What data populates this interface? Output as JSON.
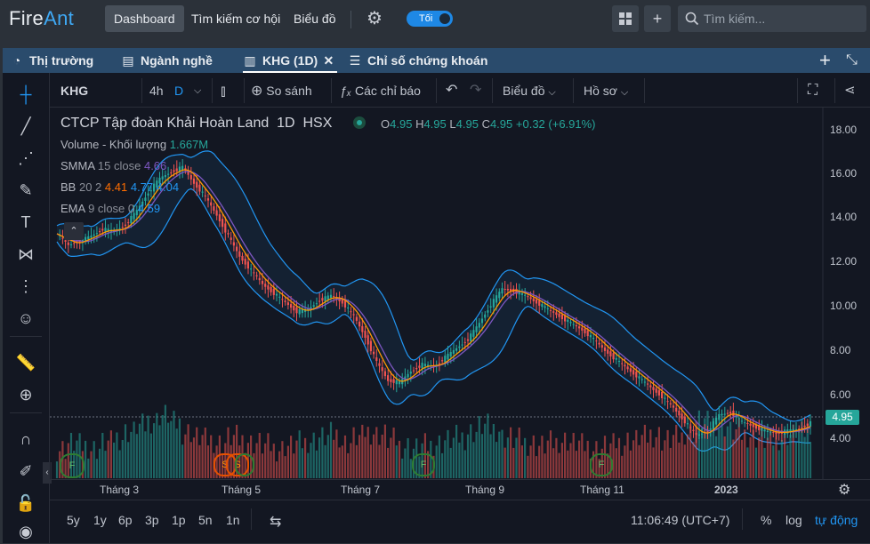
{
  "nav": {
    "logo_a": "Fire",
    "logo_b": "Ant",
    "dashboard": "Dashboard",
    "search_opportunity": "Tìm kiếm cơ hội",
    "chart": "Biểu đồ",
    "theme_toggle": "Tối",
    "search_placeholder": "Tìm kiếm..."
  },
  "tabs": [
    {
      "label": "Thị trường",
      "icon": "pie-icon"
    },
    {
      "label": "Ngành nghề",
      "icon": "table-icon"
    },
    {
      "label": "KHG (1D)",
      "icon": "chart-icon"
    },
    {
      "label": "Chỉ số chứng khoán",
      "icon": "list-icon"
    }
  ],
  "toolbar": {
    "symbol": "KHG",
    "interval": "4h",
    "interval_d": "D",
    "compare": "So sánh",
    "indicators": "Các chỉ báo",
    "chart_type": "Biểu đồ",
    "profile": "Hồ sơ"
  },
  "legend": {
    "title": "CTCP Tập đoàn Khải Hoàn Land",
    "resolution": "1D",
    "exchange": "HSX",
    "o_label": "O",
    "o": "4.95",
    "h_label": "H",
    "h": "4.95",
    "l_label": "L",
    "l": "4.95",
    "c_label": "C",
    "c": "4.95",
    "change": "+0.32 (+6.91%)",
    "volume_label": "Volume - Khối lượng",
    "volume": "1.667M",
    "smma_label": "SMMA",
    "smma_params": "15 close",
    "smma": "4.66",
    "bb_label": "BB",
    "bb_params": "20 2",
    "bb_mid": "4.41",
    "bb_up": "4.77",
    "bb_low": "4.04",
    "ema_label": "EMA",
    "ema_params": "9 close 0",
    "ema": "4.59"
  },
  "price_axis": [
    "18.00",
    "16.00",
    "14.00",
    "12.00",
    "10.00",
    "8.00",
    "6.00",
    "4.00"
  ],
  "last_price_tag": "4.95",
  "time_axis": [
    "Tháng 3",
    "Tháng 5",
    "Tháng 7",
    "Tháng 9",
    "Tháng 11",
    "2023"
  ],
  "ranges": [
    "5y",
    "1y",
    "6p",
    "3p",
    "1p",
    "5n",
    "1n"
  ],
  "footer": {
    "clock": "11:06:49 (UTC+7)",
    "percent": "%",
    "log": "log",
    "auto": "tự động"
  },
  "colors": {
    "up": "#26a69a",
    "down": "#ef5350",
    "bb": "#2196f3",
    "smma": "#7e57c2",
    "ema": "#ff9800",
    "accent": "#1e88e5"
  },
  "chart_data": {
    "type": "candlestick",
    "symbol": "KHG",
    "ylim": [
      2.5,
      18.7
    ],
    "approx_close": [
      13.2,
      12.7,
      12.9,
      13.1,
      13.4,
      13.3,
      13.6,
      14.2,
      15.0,
      15.6,
      15.9,
      16.1,
      15.4,
      14.8,
      14.0,
      13.1,
      12.2,
      11.6,
      11.0,
      10.6,
      10.2,
      9.8,
      9.9,
      10.3,
      10.5,
      10.2,
      9.6,
      8.7,
      7.6,
      6.8,
      6.7,
      7.2,
      7.5,
      7.4,
      7.8,
      8.2,
      8.6,
      9.3,
      10.1,
      10.8,
      10.7,
      10.5,
      10.2,
      9.9,
      9.6,
      9.3,
      9.0,
      8.6,
      8.1,
      7.7,
      7.3,
      6.9,
      6.5,
      6.1,
      5.6,
      5.0,
      4.4,
      4.6,
      5.3,
      5.4,
      5.0,
      4.8,
      4.6,
      4.5,
      4.6,
      4.7,
      4.95
    ],
    "volume_relative": [
      0.3,
      0.4,
      0.35,
      0.3,
      0.4,
      0.5,
      0.6,
      0.7,
      0.8,
      0.9,
      0.75,
      0.6,
      0.5,
      0.45,
      0.4,
      0.5,
      0.45,
      0.4,
      0.35,
      0.3,
      0.35,
      0.4,
      0.45,
      0.5,
      0.55,
      0.4,
      0.5,
      0.6,
      0.55,
      0.45,
      0.35,
      0.3,
      0.35,
      0.4,
      0.45,
      0.5,
      0.6,
      0.7,
      0.65,
      0.5,
      0.45,
      0.4,
      0.35,
      0.4,
      0.45,
      0.4,
      0.35,
      0.3,
      0.35,
      0.4,
      0.45,
      0.5,
      0.55,
      0.45,
      0.5,
      0.6,
      0.8,
      0.75,
      0.7,
      0.6,
      0.55,
      0.5,
      0.45,
      0.5,
      0.55,
      0.6,
      0.65
    ]
  }
}
